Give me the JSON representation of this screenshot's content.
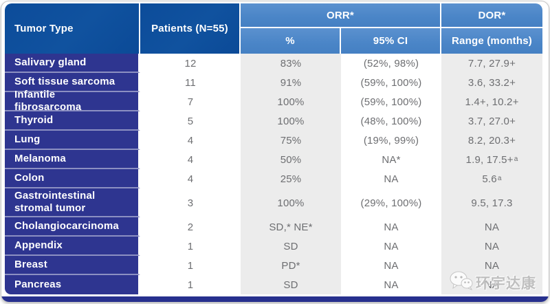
{
  "colors": {
    "header_deep_blue": "#0d4f9e",
    "header_medium_blue": "#4a85c7",
    "row_label_indigo": "#2e3590",
    "bottom_bar_indigo": "#27308e",
    "stripe_gray": "#ececec",
    "data_text_gray": "#6d6e71"
  },
  "watermark": {
    "icon": "wechat-icon",
    "text": "环宇达康"
  },
  "chart_data": {
    "type": "table",
    "columns": {
      "tumor_type": "Tumor Type",
      "patients": "Patients (N=55)",
      "orr_group": "ORR*",
      "orr_pct": "%",
      "orr_ci": "95% CI",
      "dor_group": "DOR*",
      "dor_range": "Range (months)"
    },
    "rows": [
      {
        "tumor_type": "Salivary gland",
        "patients": "12",
        "orr_pct": "83%",
        "orr_ci": "(52%, 98%)",
        "dor_range": "7.7, 27.9+"
      },
      {
        "tumor_type": "Soft tissue sarcoma",
        "patients": "11",
        "orr_pct": "91%",
        "orr_ci": "(59%, 100%)",
        "dor_range": "3.6, 33.2+"
      },
      {
        "tumor_type": "Infantile fibrosarcoma",
        "patients": "7",
        "orr_pct": "100%",
        "orr_ci": "(59%, 100%)",
        "dor_range": "1.4+, 10.2+"
      },
      {
        "tumor_type": "Thyroid",
        "patients": "5",
        "orr_pct": "100%",
        "orr_ci": "(48%, 100%)",
        "dor_range": "3.7, 27.0+"
      },
      {
        "tumor_type": "Lung",
        "patients": "4",
        "orr_pct": "75%",
        "orr_ci": "(19%, 99%)",
        "dor_range": "8.2, 20.3+"
      },
      {
        "tumor_type": "Melanoma",
        "patients": "4",
        "orr_pct": "50%",
        "orr_ci": "NA*",
        "dor_range": "1.9, 17.5+",
        "dor_range_sup": "a"
      },
      {
        "tumor_type": "Colon",
        "patients": "4",
        "orr_pct": "25%",
        "orr_ci": "NA",
        "dor_range": "5.6",
        "dor_range_sup": "a"
      },
      {
        "tumor_type": "Gastrointestinal stromal tumor",
        "patients": "3",
        "orr_pct": "100%",
        "orr_ci": "(29%, 100%)",
        "dor_range": "9.5, 17.3"
      },
      {
        "tumor_type": "Cholangiocarcinoma",
        "patients": "2",
        "orr_pct": "SD,* NE*",
        "orr_ci": "NA",
        "dor_range": "NA"
      },
      {
        "tumor_type": "Appendix",
        "patients": "1",
        "orr_pct": "SD",
        "orr_ci": "NA",
        "dor_range": "NA"
      },
      {
        "tumor_type": "Breast",
        "patients": "1",
        "orr_pct": "PD*",
        "orr_ci": "NA",
        "dor_range": "NA"
      },
      {
        "tumor_type": "Pancreas",
        "patients": "1",
        "orr_pct": "SD",
        "orr_ci": "NA",
        "dor_range": "NA"
      }
    ]
  }
}
